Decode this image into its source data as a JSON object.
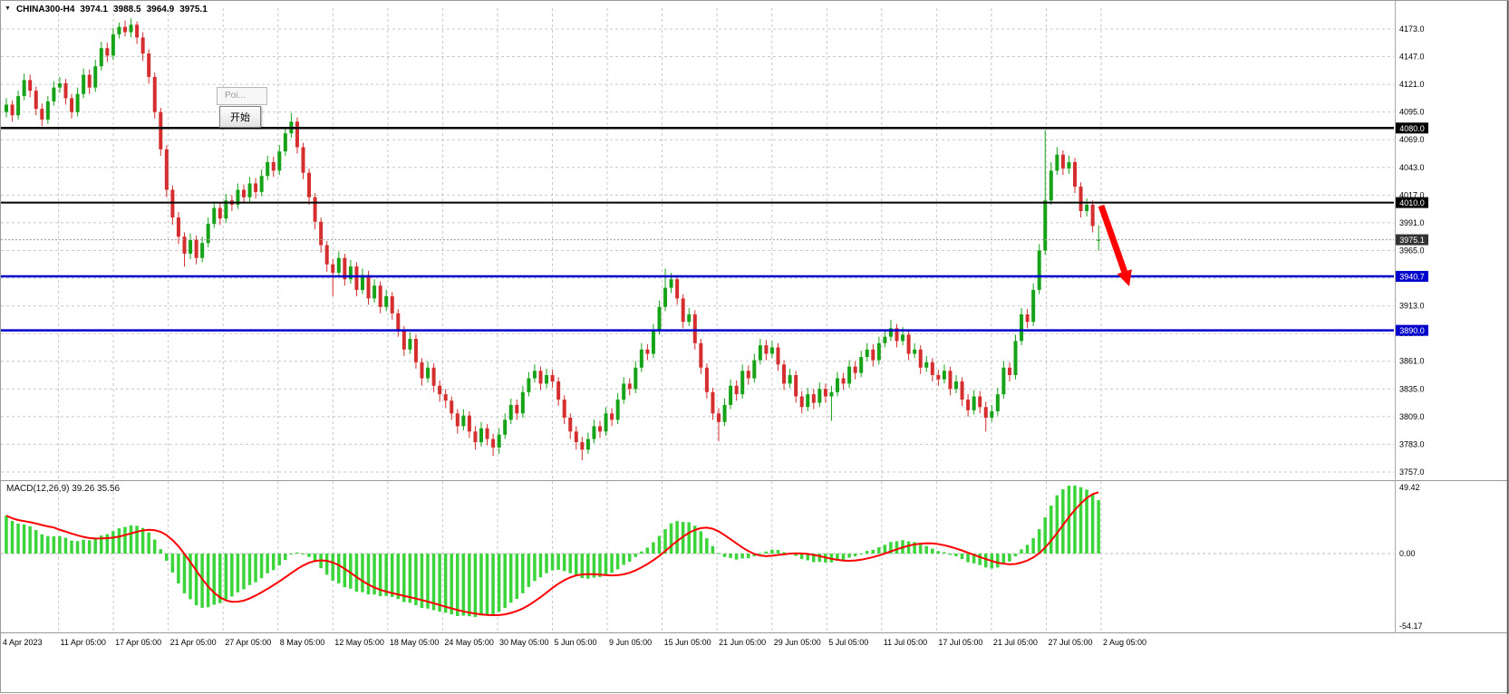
{
  "header": {
    "symbol": "CHINA300-H4",
    "open": "3974.1",
    "high": "3988.5",
    "low": "3964.9",
    "close": "3975.1"
  },
  "tooltip": {
    "title": "Poi...",
    "button_label": "开始"
  },
  "macd_label": "MACD(12,26,9) 39.26 35.56",
  "colors": {
    "up": "#17a317",
    "down": "#d42e2e",
    "macd_bar": "#3bd43b",
    "macd_signal": "#ff0000",
    "grid": "#c9c9c9",
    "level_black": "#000000",
    "level_blue": "#0000cc",
    "current_badge": "#333333",
    "arrow": "#ff0000",
    "axis_text": "#000000"
  },
  "chart_data": {
    "type": "candlestick",
    "symbol": "CHINA300",
    "timeframe": "H4",
    "title": "CHINA300-H4 3974.1 3988.5 3964.9 3975.1",
    "panels": [
      "price",
      "macd"
    ],
    "grid": true,
    "price_axis_ticks": [
      4173,
      4147,
      4121,
      4095,
      4069,
      4043,
      4017,
      3991,
      3965,
      3939,
      3913,
      3887,
      3861,
      3835,
      3809,
      3783,
      3757
    ],
    "time_axis_labels": [
      "4 Apr 2023",
      "11 Apr 05:00",
      "17 Apr 05:00",
      "21 Apr 05:00",
      "27 Apr 05:00",
      "8 May 05:00",
      "12 May 05:00",
      "18 May 05:00",
      "24 May 05:00",
      "30 May 05:00",
      "5 Jun 05:00",
      "9 Jun 05:00",
      "15 Jun 05:00",
      "21 Jun 05:00",
      "29 Jun 05:00",
      "5 Jul 05:00",
      "11 Jul 05:00",
      "17 Jul 05:00",
      "21 Jul 05:00",
      "27 Jul 05:00",
      "2 Aug 05:00"
    ],
    "levels": [
      {
        "value": 4080.0,
        "label": "4080.0",
        "color": "#000000",
        "width": 2.5
      },
      {
        "value": 4010.0,
        "label": "4010.0",
        "color": "#000000",
        "width": 2
      },
      {
        "value": 3940.7,
        "label": "3940.7",
        "color": "#0000cc",
        "width": 2.5
      },
      {
        "value": 3890.0,
        "label": "3890.0",
        "color": "#0000cc",
        "width": 2.5
      }
    ],
    "current_price": {
      "value": 3975.1,
      "label": "3975.1"
    },
    "macd": {
      "settings": "12,26,9",
      "value": 39.26,
      "signal": 35.56,
      "axis_labels": [
        "49.42",
        "0.00",
        "-54.17"
      ]
    },
    "ohlc_current": {
      "open": 3974.1,
      "high": 3988.5,
      "low": 3964.9,
      "close": 3975.1
    },
    "candles": [
      [
        4095,
        4108,
        4090,
        4102
      ],
      [
        4102,
        4106,
        4086,
        4092
      ],
      [
        4092,
        4115,
        4088,
        4110
      ],
      [
        4110,
        4131,
        4106,
        4125
      ],
      [
        4125,
        4130,
        4109,
        4115
      ],
      [
        4115,
        4119,
        4092,
        4098
      ],
      [
        4098,
        4103,
        4082,
        4088
      ],
      [
        4088,
        4110,
        4084,
        4105
      ],
      [
        4105,
        4124,
        4101,
        4118
      ],
      [
        4118,
        4128,
        4113,
        4122
      ],
      [
        4122,
        4126,
        4102,
        4108
      ],
      [
        4108,
        4112,
        4089,
        4095
      ],
      [
        4095,
        4118,
        4091,
        4112
      ],
      [
        4112,
        4136,
        4108,
        4130
      ],
      [
        4130,
        4135,
        4112,
        4118
      ],
      [
        4118,
        4144,
        4114,
        4138
      ],
      [
        4138,
        4161,
        4134,
        4155
      ],
      [
        4155,
        4160,
        4142,
        4148
      ],
      [
        4148,
        4174,
        4144,
        4168
      ],
      [
        4168,
        4179,
        4164,
        4175
      ],
      [
        4175,
        4181,
        4166,
        4170
      ],
      [
        4170,
        4183,
        4165,
        4177
      ],
      [
        4177,
        4180,
        4159,
        4165
      ],
      [
        4165,
        4170,
        4143,
        4150
      ],
      [
        4150,
        4154,
        4122,
        4128
      ],
      [
        4128,
        4132,
        4089,
        4095
      ],
      [
        4095,
        4099,
        4054,
        4060
      ],
      [
        4060,
        4064,
        4015,
        4022
      ],
      [
        4022,
        4026,
        3989,
        3996
      ],
      [
        3996,
        4001,
        3971,
        3978
      ],
      [
        3978,
        3982,
        3950,
        3962
      ],
      [
        3962,
        3981,
        3957,
        3975
      ],
      [
        3975,
        3979,
        3952,
        3958
      ],
      [
        3958,
        3978,
        3954,
        3972
      ],
      [
        3972,
        3996,
        3968,
        3990
      ],
      [
        3990,
        4011,
        3986,
        4005
      ],
      [
        4005,
        4010,
        3989,
        3995
      ],
      [
        3995,
        4018,
        3991,
        4012
      ],
      [
        4012,
        4017,
        4002,
        4008
      ],
      [
        4008,
        4028,
        4004,
        4022
      ],
      [
        4022,
        4027,
        4009,
        4015
      ],
      [
        4015,
        4034,
        4011,
        4028
      ],
      [
        4028,
        4033,
        4014,
        4020
      ],
      [
        4020,
        4041,
        4016,
        4035
      ],
      [
        4035,
        4054,
        4031,
        4048
      ],
      [
        4048,
        4053,
        4034,
        4040
      ],
      [
        4040,
        4064,
        4036,
        4058
      ],
      [
        4058,
        4081,
        4054,
        4075
      ],
      [
        4075,
        4094,
        4071,
        4086
      ],
      [
        4086,
        4090,
        4056,
        4062
      ],
      [
        4062,
        4066,
        4032,
        4038
      ],
      [
        4038,
        4042,
        4008,
        4015
      ],
      [
        4015,
        4019,
        3985,
        3992
      ],
      [
        3992,
        3996,
        3963,
        3970
      ],
      [
        3970,
        3974,
        3945,
        3952
      ],
      [
        3952,
        3957,
        3922,
        3944
      ],
      [
        3944,
        3964,
        3940,
        3958
      ],
      [
        3958,
        3962,
        3932,
        3938
      ],
      [
        3938,
        3956,
        3934,
        3950
      ],
      [
        3950,
        3954,
        3922,
        3928
      ],
      [
        3928,
        3948,
        3924,
        3942
      ],
      [
        3942,
        3946,
        3914,
        3920
      ],
      [
        3920,
        3938,
        3916,
        3932
      ],
      [
        3932,
        3936,
        3906,
        3912
      ],
      [
        3912,
        3928,
        3908,
        3922
      ],
      [
        3922,
        3926,
        3900,
        3906
      ],
      [
        3906,
        3910,
        3884,
        3890
      ],
      [
        3890,
        3894,
        3866,
        3872
      ],
      [
        3872,
        3888,
        3868,
        3882
      ],
      [
        3882,
        3886,
        3854,
        3860
      ],
      [
        3860,
        3864,
        3838,
        3845
      ],
      [
        3845,
        3861,
        3841,
        3855
      ],
      [
        3855,
        3859,
        3832,
        3838
      ],
      [
        3838,
        3843,
        3823,
        3830
      ],
      [
        3830,
        3835,
        3817,
        3824
      ],
      [
        3824,
        3828,
        3806,
        3812
      ],
      [
        3812,
        3816,
        3793,
        3800
      ],
      [
        3800,
        3816,
        3796,
        3810
      ],
      [
        3810,
        3814,
        3789,
        3795
      ],
      [
        3795,
        3800,
        3778,
        3785
      ],
      [
        3785,
        3804,
        3781,
        3798
      ],
      [
        3798,
        3802,
        3782,
        3788
      ],
      [
        3788,
        3793,
        3772,
        3780
      ],
      [
        3780,
        3798,
        3774,
        3792
      ],
      [
        3792,
        3812,
        3788,
        3806
      ],
      [
        3806,
        3826,
        3802,
        3820
      ],
      [
        3820,
        3825,
        3806,
        3812
      ],
      [
        3812,
        3838,
        3808,
        3832
      ],
      [
        3832,
        3851,
        3828,
        3845
      ],
      [
        3845,
        3858,
        3841,
        3852
      ],
      [
        3852,
        3856,
        3834,
        3840
      ],
      [
        3840,
        3854,
        3836,
        3848
      ],
      [
        3848,
        3853,
        3836,
        3842
      ],
      [
        3842,
        3846,
        3819,
        3825
      ],
      [
        3825,
        3829,
        3802,
        3808
      ],
      [
        3808,
        3812,
        3788,
        3795
      ],
      [
        3795,
        3800,
        3778,
        3785
      ],
      [
        3785,
        3790,
        3768,
        3778
      ],
      [
        3778,
        3794,
        3774,
        3788
      ],
      [
        3788,
        3806,
        3784,
        3800
      ],
      [
        3800,
        3805,
        3789,
        3795
      ],
      [
        3795,
        3818,
        3791,
        3812
      ],
      [
        3812,
        3817,
        3800,
        3806
      ],
      [
        3806,
        3831,
        3802,
        3825
      ],
      [
        3825,
        3846,
        3821,
        3840
      ],
      [
        3840,
        3845,
        3829,
        3835
      ],
      [
        3835,
        3861,
        3831,
        3855
      ],
      [
        3855,
        3878,
        3851,
        3872
      ],
      [
        3872,
        3877,
        3862,
        3868
      ],
      [
        3868,
        3896,
        3864,
        3890
      ],
      [
        3890,
        3918,
        3886,
        3912
      ],
      [
        3912,
        3948,
        3908,
        3930
      ],
      [
        3930,
        3944,
        3925,
        3938
      ],
      [
        3938,
        3942,
        3914,
        3920
      ],
      [
        3920,
        3924,
        3892,
        3898
      ],
      [
        3898,
        3911,
        3894,
        3905
      ],
      [
        3905,
        3909,
        3872,
        3878
      ],
      [
        3878,
        3882,
        3849,
        3855
      ],
      [
        3855,
        3859,
        3826,
        3832
      ],
      [
        3832,
        3836,
        3806,
        3812
      ],
      [
        3812,
        3817,
        3786,
        3804
      ],
      [
        3804,
        3826,
        3800,
        3820
      ],
      [
        3820,
        3844,
        3816,
        3838
      ],
      [
        3838,
        3843,
        3824,
        3830
      ],
      [
        3830,
        3858,
        3826,
        3852
      ],
      [
        3852,
        3857,
        3839,
        3845
      ],
      [
        3845,
        3868,
        3841,
        3862
      ],
      [
        3862,
        3882,
        3858,
        3876
      ],
      [
        3876,
        3881,
        3862,
        3868
      ],
      [
        3868,
        3880,
        3864,
        3874
      ],
      [
        3874,
        3878,
        3852,
        3858
      ],
      [
        3858,
        3862,
        3834,
        3840
      ],
      [
        3840,
        3854,
        3836,
        3848
      ],
      [
        3848,
        3852,
        3822,
        3828
      ],
      [
        3828,
        3833,
        3812,
        3818
      ],
      [
        3818,
        3836,
        3814,
        3830
      ],
      [
        3830,
        3835,
        3816,
        3822
      ],
      [
        3822,
        3841,
        3818,
        3835
      ],
      [
        3835,
        3840,
        3822,
        3828
      ],
      [
        3828,
        3838,
        3805,
        3832
      ],
      [
        3832,
        3851,
        3828,
        3845
      ],
      [
        3845,
        3850,
        3834,
        3840
      ],
      [
        3840,
        3862,
        3836,
        3856
      ],
      [
        3856,
        3861,
        3844,
        3850
      ],
      [
        3850,
        3871,
        3846,
        3865
      ],
      [
        3865,
        3878,
        3861,
        3872
      ],
      [
        3872,
        3877,
        3856,
        3862
      ],
      [
        3862,
        3884,
        3858,
        3878
      ],
      [
        3878,
        3890,
        3874,
        3884
      ],
      [
        3884,
        3900,
        3880,
        3892
      ],
      [
        3892,
        3896,
        3874,
        3880
      ],
      [
        3880,
        3893,
        3876,
        3886
      ],
      [
        3886,
        3890,
        3862,
        3868
      ],
      [
        3868,
        3878,
        3864,
        3872
      ],
      [
        3872,
        3876,
        3849,
        3855
      ],
      [
        3855,
        3866,
        3851,
        3860
      ],
      [
        3860,
        3864,
        3842,
        3848
      ],
      [
        3848,
        3853,
        3838,
        3844
      ],
      [
        3844,
        3858,
        3840,
        3852
      ],
      [
        3852,
        3856,
        3829,
        3835
      ],
      [
        3835,
        3848,
        3831,
        3842
      ],
      [
        3842,
        3846,
        3819,
        3825
      ],
      [
        3825,
        3830,
        3809,
        3815
      ],
      [
        3815,
        3834,
        3811,
        3828
      ],
      [
        3828,
        3833,
        3812,
        3818
      ],
      [
        3818,
        3823,
        3795,
        3808
      ],
      [
        3808,
        3820,
        3804,
        3814
      ],
      [
        3814,
        3836,
        3810,
        3830
      ],
      [
        3830,
        3861,
        3826,
        3855
      ],
      [
        3855,
        3860,
        3842,
        3848
      ],
      [
        3848,
        3886,
        3844,
        3880
      ],
      [
        3880,
        3911,
        3876,
        3905
      ],
      [
        3905,
        3910,
        3892,
        3898
      ],
      [
        3898,
        3934,
        3894,
        3928
      ],
      [
        3928,
        3971,
        3924,
        3965
      ],
      [
        3965,
        4078,
        3961,
        4012
      ],
      [
        4012,
        4048,
        4008,
        4040
      ],
      [
        4040,
        4062,
        4036,
        4055
      ],
      [
        4055,
        4059,
        4036,
        4042
      ],
      [
        4042,
        4054,
        4037,
        4048
      ],
      [
        4048,
        4052,
        4019,
        4025
      ],
      [
        4025,
        4029,
        3996,
        4002
      ],
      [
        4002,
        4014,
        3997,
        4008
      ],
      [
        4008,
        4012,
        3982,
        3988
      ],
      [
        3974.1,
        3988.5,
        3964.9,
        3975.1
      ]
    ]
  }
}
